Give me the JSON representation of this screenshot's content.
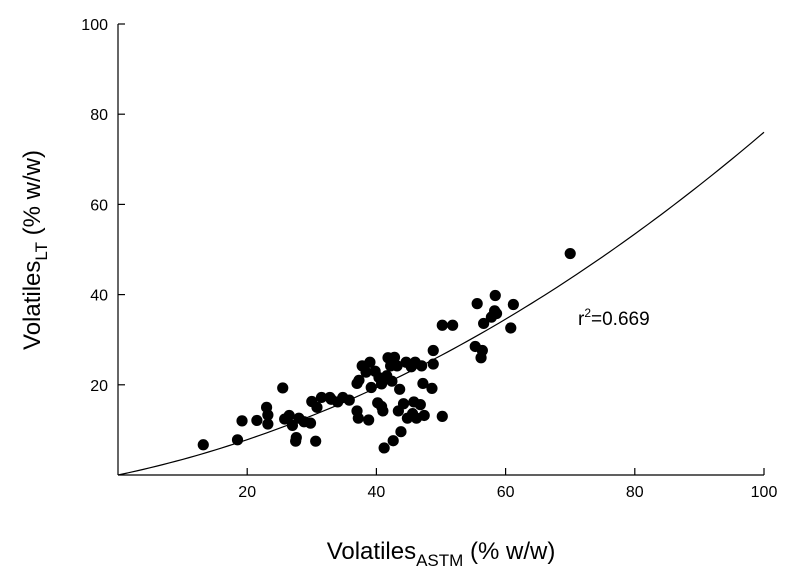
{
  "chart_data": {
    "type": "scatter",
    "xlabel": {
      "main": "Volatiles",
      "sub": "ASTM",
      "rest": " (% w/w)"
    },
    "ylabel": {
      "main": "Volatiles",
      "sub": "LT",
      "rest": " (% w/w)"
    },
    "xlim": [
      0,
      100
    ],
    "ylim": [
      0,
      100
    ],
    "xticks": [
      20,
      40,
      60,
      80,
      100
    ],
    "yticks": [
      20,
      40,
      60,
      80,
      100
    ],
    "grid": false,
    "annotation": {
      "base": "r",
      "sup": "2",
      "rest": "=0.669"
    },
    "points": [
      [
        13.2,
        6.7
      ],
      [
        18.5,
        7.8
      ],
      [
        19.2,
        12.0
      ],
      [
        21.5,
        12.1
      ],
      [
        23.0,
        15.0
      ],
      [
        23.2,
        13.3
      ],
      [
        23.2,
        11.3
      ],
      [
        25.5,
        19.3
      ],
      [
        25.8,
        12.4
      ],
      [
        26.5,
        13.2
      ],
      [
        27.0,
        11.0
      ],
      [
        27.5,
        7.5
      ],
      [
        27.6,
        8.3
      ],
      [
        28.0,
        12.6
      ],
      [
        28.8,
        11.8
      ],
      [
        29.8,
        11.5
      ],
      [
        30.0,
        16.3
      ],
      [
        30.6,
        7.5
      ],
      [
        30.8,
        15.0
      ],
      [
        31.5,
        17.2
      ],
      [
        32.8,
        17.2
      ],
      [
        33.0,
        16.8
      ],
      [
        34.0,
        16.2
      ],
      [
        34.8,
        17.2
      ],
      [
        35.8,
        16.6
      ],
      [
        37.0,
        20.3
      ],
      [
        37.0,
        14.2
      ],
      [
        37.2,
        12.6
      ],
      [
        37.3,
        21.0
      ],
      [
        37.8,
        24.2
      ],
      [
        38.4,
        22.8
      ],
      [
        38.8,
        12.2
      ],
      [
        39.0,
        25.0
      ],
      [
        39.2,
        19.4
      ],
      [
        39.8,
        23.0
      ],
      [
        40.2,
        16.0
      ],
      [
        40.4,
        21.6
      ],
      [
        40.8,
        15.2
      ],
      [
        40.8,
        20.2
      ],
      [
        41.0,
        14.2
      ],
      [
        41.2,
        6.0
      ],
      [
        41.6,
        22.0
      ],
      [
        41.8,
        26.0
      ],
      [
        42.2,
        24.2
      ],
      [
        42.4,
        20.8
      ],
      [
        42.6,
        7.6
      ],
      [
        42.8,
        26.1
      ],
      [
        43.2,
        24.2
      ],
      [
        43.4,
        14.2
      ],
      [
        43.6,
        19.0
      ],
      [
        43.8,
        9.6
      ],
      [
        44.2,
        15.8
      ],
      [
        44.6,
        25.0
      ],
      [
        44.8,
        12.6
      ],
      [
        45.4,
        24.0
      ],
      [
        45.6,
        13.6
      ],
      [
        45.8,
        16.2
      ],
      [
        46.0,
        25.0
      ],
      [
        46.2,
        12.6
      ],
      [
        46.8,
        15.6
      ],
      [
        47.0,
        24.2
      ],
      [
        47.2,
        20.3
      ],
      [
        47.4,
        13.2
      ],
      [
        48.6,
        19.2
      ],
      [
        48.8,
        24.6
      ],
      [
        48.8,
        27.6
      ],
      [
        50.2,
        13.0
      ],
      [
        50.2,
        33.2
      ],
      [
        51.8,
        33.2
      ],
      [
        55.3,
        28.5
      ],
      [
        55.6,
        38.0
      ],
      [
        56.2,
        26.0
      ],
      [
        56.4,
        27.6
      ],
      [
        56.6,
        33.6
      ],
      [
        57.8,
        35.0
      ],
      [
        58.3,
        36.4
      ],
      [
        58.4,
        39.8
      ],
      [
        58.6,
        35.8
      ],
      [
        60.8,
        32.6
      ],
      [
        61.2,
        37.8
      ],
      [
        70.0,
        49.1
      ]
    ],
    "fit_curve": {
      "type": "quadratic",
      "coefficients": [
        0.0,
        0.3,
        0.0046
      ]
    }
  }
}
